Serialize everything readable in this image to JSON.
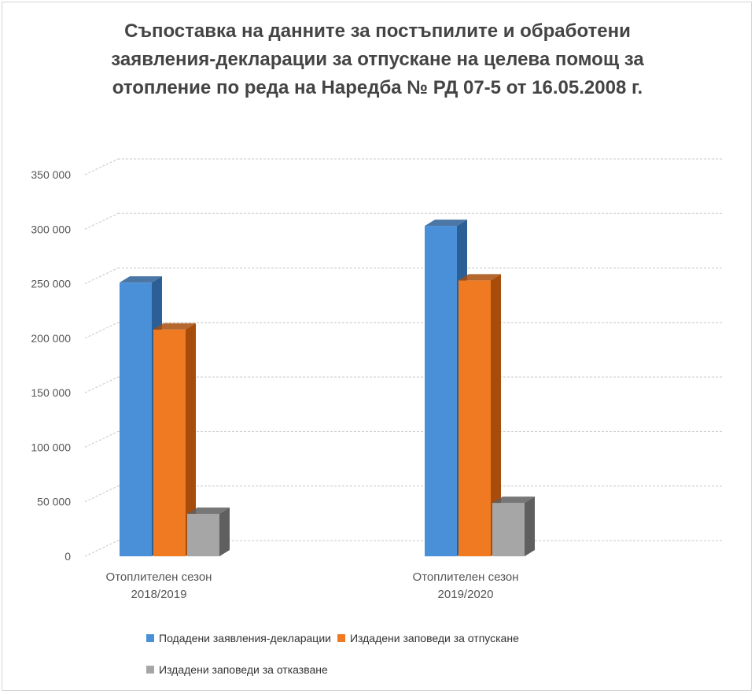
{
  "chart_data": {
    "type": "bar",
    "title_lines": [
      "Съпоставка на данните за постъпилите и обработени",
      "заявления-декларации за отпускане на целева помощ за",
      "отопление по реда на Наредба № РД 07-5 от 16.05.2008 г."
    ],
    "categories": [
      [
        "Отоплителен сезон",
        "2018/2019"
      ],
      [
        "Отоплителен сезон",
        "2019/2020"
      ]
    ],
    "series": [
      {
        "name": "Подадени заявления-декларации",
        "values": [
          251000,
          303000
        ],
        "color": "#4a90d9",
        "side": "#2b5f96"
      },
      {
        "name": "Издадени заповеди за отпускане",
        "values": [
          208000,
          253000
        ],
        "color": "#ef7a22",
        "side": "#a84c0c"
      },
      {
        "name": "Издадени заповеди за отказване",
        "values": [
          39000,
          49000
        ],
        "color": "#a6a6a6",
        "side": "#5f5f5f"
      }
    ],
    "ylim": [
      0,
      350000
    ],
    "yticks": [
      {
        "value": 0,
        "label": "0"
      },
      {
        "value": 50000,
        "label": "50 000"
      },
      {
        "value": 100000,
        "label": "100 000"
      },
      {
        "value": 150000,
        "label": "150 000"
      },
      {
        "value": 200000,
        "label": "200 000"
      },
      {
        "value": 250000,
        "label": "250 000"
      },
      {
        "value": 300000,
        "label": "300 000"
      },
      {
        "value": 350000,
        "label": "350 000"
      }
    ],
    "grid": true,
    "legend_position": "bottom"
  }
}
